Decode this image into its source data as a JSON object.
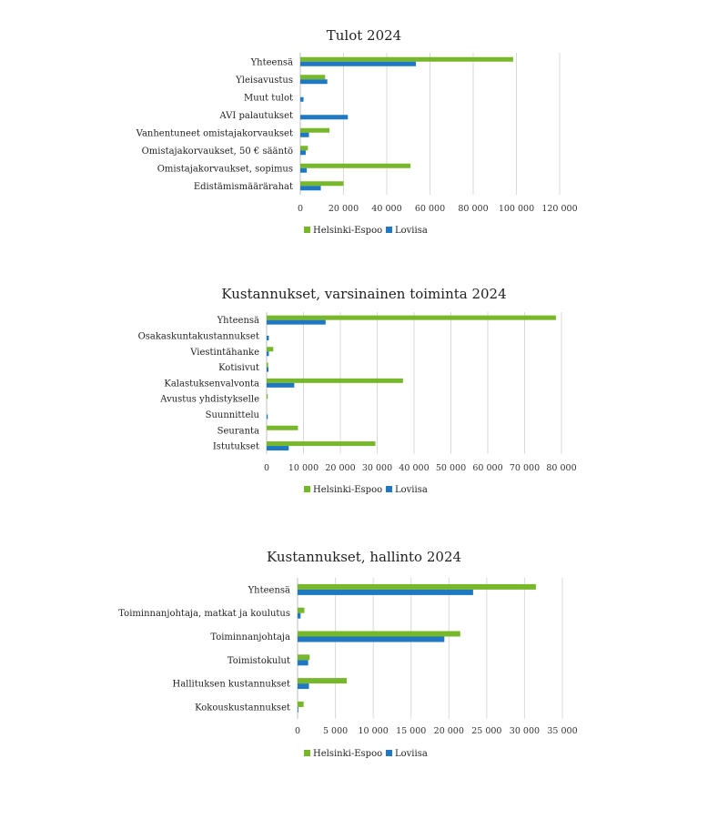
{
  "colors": {
    "series1": "#76b82a",
    "series2": "#1f78c1",
    "grid": "#d9d9d9",
    "axis": "#bfbfbf"
  },
  "chart_data": [
    {
      "type": "bar",
      "orientation": "horizontal",
      "title": "Tulot 2024",
      "categories": [
        "Yhteensä",
        "Yleisavustus",
        "Muut tulot",
        "AVI palautukset",
        "Vanhentuneet omistajakorvaukset",
        "Omistajakorvaukset, 50 € sääntö",
        "Omistajakorvaukset, sopimus",
        "Edistämismäärärahat"
      ],
      "series": [
        {
          "name": "Helsinki-Espoo",
          "values": [
            98500,
            11500,
            0,
            0,
            13500,
            3500,
            51000,
            20000
          ]
        },
        {
          "name": "Loviisa",
          "values": [
            53500,
            12500,
            1500,
            22000,
            4000,
            2500,
            3000,
            9500
          ]
        }
      ],
      "xlim": [
        0,
        120000
      ],
      "ticks": [
        0,
        20000,
        40000,
        60000,
        80000,
        100000,
        120000
      ],
      "tick_labels": [
        "0",
        "20 000",
        "40 000",
        "60 000",
        "80 000",
        "100 000",
        "120 000"
      ],
      "legend": [
        "Helsinki-Espoo",
        "Loviisa"
      ]
    },
    {
      "type": "bar",
      "orientation": "horizontal",
      "title": "Kustannukset, varsinainen toiminta 2024",
      "categories": [
        "Yhteensä",
        "Osakaskuntakustannukset",
        "Viestintähanke",
        "Kotisivut",
        "Kalastuksenvalvonta",
        "Avustus yhdistykselle",
        "Suunnittelu",
        "Seuranta",
        "Istutukset"
      ],
      "series": [
        {
          "name": "Helsinki-Espoo",
          "values": [
            78500,
            0,
            1800,
            400,
            37000,
            300,
            0,
            8500,
            29500
          ]
        },
        {
          "name": "Loviisa",
          "values": [
            16000,
            600,
            600,
            500,
            7500,
            0,
            300,
            0,
            6000
          ]
        }
      ],
      "xlim": [
        0,
        80000
      ],
      "ticks": [
        0,
        10000,
        20000,
        30000,
        40000,
        50000,
        60000,
        70000,
        80000
      ],
      "tick_labels": [
        "0",
        "10 000",
        "20 000",
        "30 000",
        "40 000",
        "50 000",
        "60 000",
        "70 000",
        "80 000"
      ],
      "legend": [
        "Helsinki-Espoo",
        "Loviisa"
      ]
    },
    {
      "type": "bar",
      "orientation": "horizontal",
      "title": "Kustannukset, hallinto 2024",
      "categories": [
        "Yhteensä",
        "Toiminnanjohtaja, matkat ja koulutus",
        "Toiminnanjohtaja",
        "Toimistokulut",
        "Hallituksen kustannukset",
        "Kokouskustannukset"
      ],
      "series": [
        {
          "name": "Helsinki-Espoo",
          "values": [
            31500,
            900,
            21500,
            1600,
            6500,
            800
          ]
        },
        {
          "name": "Loviisa",
          "values": [
            23200,
            400,
            19400,
            1400,
            1500,
            100
          ]
        }
      ],
      "xlim": [
        0,
        35000
      ],
      "ticks": [
        0,
        5000,
        10000,
        15000,
        20000,
        25000,
        30000,
        35000
      ],
      "tick_labels": [
        "0",
        "5 000",
        "10 000",
        "15 000",
        "20 000",
        "25 000",
        "30 000",
        "35 000"
      ],
      "legend": [
        "Helsinki-Espoo",
        "Loviisa"
      ]
    }
  ]
}
